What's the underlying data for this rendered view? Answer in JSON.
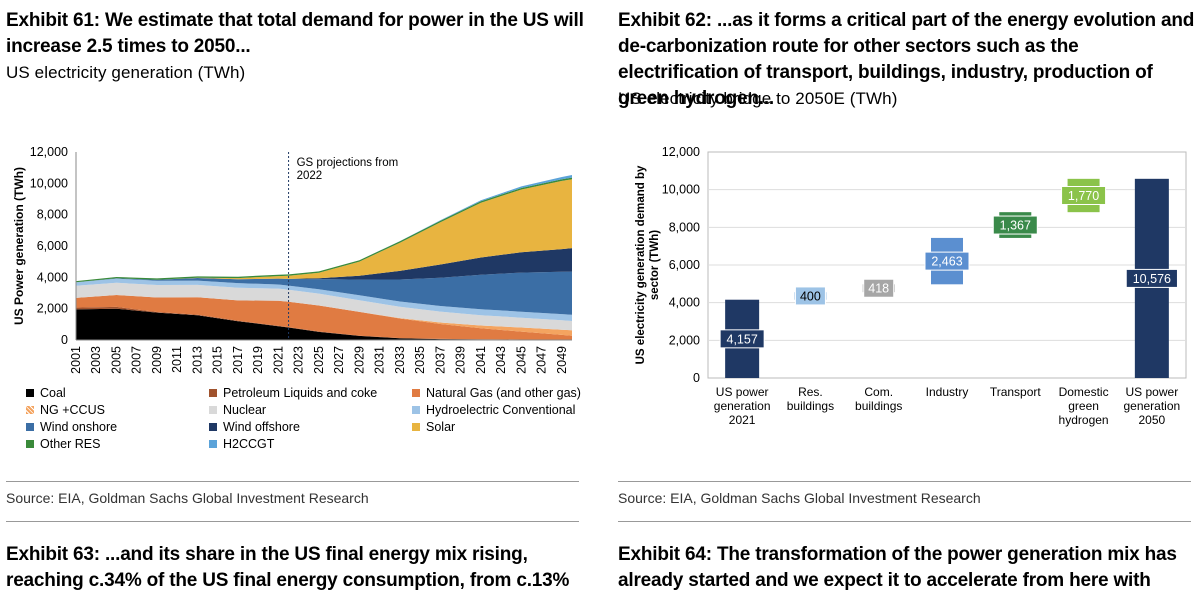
{
  "exhibit61": {
    "title": "Exhibit 61: We estimate that total demand for power in the US will increase 2.5 times to 2050...",
    "subtitle": "US electricity generation (TWh)",
    "source": "Source: EIA, Goldman Sachs Global Investment Research",
    "annotation": "GS projections from 2022",
    "legend": [
      {
        "label": "Coal",
        "color": "#000000"
      },
      {
        "label": "Petroleum Liquids and coke",
        "color": "#a0522d"
      },
      {
        "label": "Natural Gas (and other gas)",
        "color": "#e07b42"
      },
      {
        "label": "NG +CCUS",
        "color": "#f4a460"
      },
      {
        "label": "Nuclear",
        "color": "#d9d9d9"
      },
      {
        "label": "Hydroelectric Conventional",
        "color": "#9dc3e6"
      },
      {
        "label": "Wind onshore",
        "color": "#3b6ea5"
      },
      {
        "label": "Wind offshore",
        "color": "#1f3864"
      },
      {
        "label": "Solar",
        "color": "#e8b440"
      },
      {
        "label": "Other RES",
        "color": "#3a8a3a"
      },
      {
        "label": "H2CCGT",
        "color": "#5ba3d9"
      }
    ]
  },
  "exhibit62": {
    "title": "Exhibit 62: ...as it forms a critical part of the energy evolution and de-carbonization route for other sectors such as the electrification of transport, buildings, industry, production of green hydrogen...",
    "subtitle": "US electricity bridge to 2050E (TWh)",
    "source": "Source: EIA, Goldman Sachs Global Investment Research"
  },
  "exhibit63": {
    "title": "Exhibit 63: ...and its share in the US final energy mix rising, reaching c.34% of the US final energy consumption, from c.13%"
  },
  "exhibit64": {
    "title": "Exhibit 64: The transformation of the power generation mix has already started and we expect it to accelerate from here with"
  },
  "chart_data": [
    {
      "type": "area",
      "title": "US electricity generation (TWh)",
      "ylabel": "US Power generation (TWh)",
      "ylim": [
        0,
        12000
      ],
      "yticks": [
        0,
        2000,
        4000,
        6000,
        8000,
        10000,
        12000
      ],
      "x": [
        2001,
        2005,
        2009,
        2013,
        2017,
        2021,
        2022,
        2025,
        2029,
        2033,
        2037,
        2041,
        2045,
        2049,
        2050
      ],
      "xtick_labels": [
        "2001",
        "2003",
        "2005",
        "2007",
        "2009",
        "2011",
        "2013",
        "2015",
        "2017",
        "2019",
        "2021",
        "2023",
        "2025",
        "2027",
        "2029",
        "2031",
        "2033",
        "2035",
        "2037",
        "2039",
        "2041",
        "2043",
        "2045",
        "2047",
        "2049"
      ],
      "projection_start": 2022,
      "annotation": "GS projections from 2022",
      "series": [
        {
          "name": "Coal",
          "values": [
            1950,
            2000,
            1750,
            1580,
            1200,
            880,
            800,
            520,
            260,
            110,
            60,
            40,
            30,
            20,
            20
          ]
        },
        {
          "name": "Petroleum Liquids and coke",
          "values": [
            120,
            110,
            40,
            30,
            25,
            20,
            20,
            20,
            15,
            10,
            10,
            5,
            5,
            5,
            5
          ]
        },
        {
          "name": "Natural Gas (and other gas)",
          "values": [
            620,
            760,
            920,
            1120,
            1300,
            1600,
            1620,
            1660,
            1520,
            1250,
            950,
            700,
            500,
            300,
            250
          ]
        },
        {
          "name": "NG +CCUS",
          "values": [
            0,
            0,
            0,
            0,
            0,
            0,
            0,
            0,
            0,
            30,
            100,
            180,
            260,
            330,
            350
          ]
        },
        {
          "name": "Nuclear",
          "values": [
            770,
            780,
            800,
            790,
            805,
            780,
            770,
            760,
            740,
            720,
            690,
            660,
            630,
            600,
            590
          ]
        },
        {
          "name": "Hydroelectric Conventional",
          "values": [
            220,
            270,
            270,
            270,
            300,
            260,
            260,
            280,
            320,
            340,
            360,
            380,
            380,
            400,
            400
          ]
        },
        {
          "name": "Wind onshore",
          "values": [
            10,
            20,
            70,
            170,
            250,
            380,
            430,
            650,
            1000,
            1400,
            1800,
            2200,
            2500,
            2700,
            2750
          ]
        },
        {
          "name": "Wind offshore",
          "values": [
            0,
            0,
            0,
            0,
            0,
            0,
            0,
            50,
            250,
            550,
            850,
            1100,
            1300,
            1450,
            1500
          ]
        },
        {
          "name": "Solar",
          "values": [
            0,
            0,
            0,
            10,
            70,
            160,
            200,
            350,
            900,
            1800,
            2700,
            3500,
            4000,
            4350,
            4400
          ]
        },
        {
          "name": "Other RES",
          "values": [
            70,
            80,
            80,
            90,
            90,
            90,
            90,
            90,
            90,
            95,
            95,
            95,
            100,
            100,
            100
          ]
        },
        {
          "name": "H2CCGT",
          "values": [
            0,
            0,
            0,
            0,
            0,
            0,
            0,
            0,
            0,
            10,
            30,
            60,
            100,
            150,
            170
          ]
        }
      ]
    },
    {
      "type": "bar",
      "subtype": "waterfall",
      "title": "US electricity bridge to 2050E (TWh)",
      "ylabel": "US electricity generation demand by sector (TWh)",
      "ylim": [
        0,
        12000
      ],
      "yticks": [
        0,
        2000,
        4000,
        6000,
        8000,
        10000,
        12000
      ],
      "categories": [
        "US power generation 2021",
        "Res. buildings",
        "Com. buildings",
        "Industry",
        "Transport",
        "Domestic green hydrogen",
        "US power generation 2050"
      ],
      "values": [
        4157,
        400,
        418,
        2463,
        1367,
        1770,
        10576
      ],
      "value_labels": [
        "4,157",
        "400",
        "418",
        "2,463",
        "1,367",
        "1,770",
        "10,576"
      ],
      "bar_kind": [
        "total",
        "delta",
        "delta",
        "delta",
        "delta",
        "delta",
        "total"
      ],
      "colors": [
        "#1f3864",
        "#9dc3e6",
        "#a6a6a6",
        "#5b8fd0",
        "#3a8a4a",
        "#8bc34a",
        "#1f3864"
      ]
    }
  ]
}
